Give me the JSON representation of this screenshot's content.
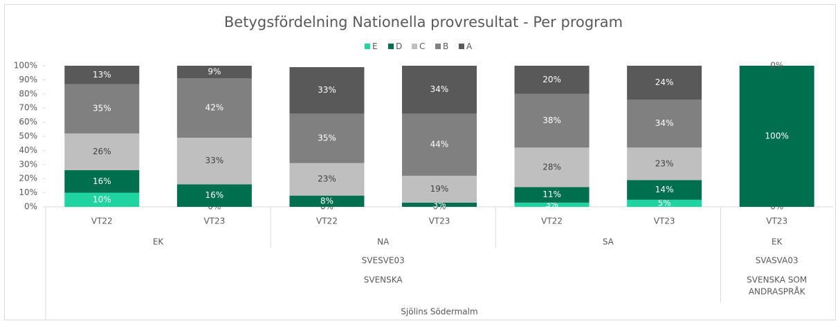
{
  "chart_data": {
    "type": "stacked-bar-100",
    "title": "Betygsfördelning Nationella provresultat - Per program",
    "categories": [
      "VT22",
      "VT23",
      "VT22",
      "VT23",
      "VT22",
      "VT23",
      "VT23"
    ],
    "category_levels": [
      [
        {
          "label": "EK",
          "span": 2
        },
        {
          "label": "NA",
          "span": 2
        },
        {
          "label": "SA",
          "span": 2
        },
        {
          "label": "EK",
          "span": 1
        }
      ],
      [
        {
          "label": "SVESVE03",
          "span": 6
        },
        {
          "label": "SVASVA03",
          "span": 1
        }
      ],
      [
        {
          "label": "SVENSKA",
          "span": 6
        },
        {
          "label": [
            "SVENSKA SOM",
            "ANDRASPRÅK"
          ],
          "span": 1
        }
      ],
      [
        {
          "label": "Sjölins Södermalm",
          "span": 7
        }
      ]
    ],
    "series": [
      {
        "name": "E",
        "color": "#1fd4a0",
        "values": [
          10,
          0,
          0,
          0,
          3,
          5,
          0
        ],
        "value_labels": [
          "10%",
          "0%",
          "0%",
          "0%",
          "3%",
          "5%",
          "0%"
        ]
      },
      {
        "name": "D",
        "color": "#006f4e",
        "values": [
          16,
          16,
          8,
          3,
          11,
          14,
          100
        ],
        "value_labels": [
          "16%",
          "16%",
          "8%",
          "3%",
          "11%",
          "14%",
          "100%"
        ]
      },
      {
        "name": "C",
        "color": "#bfbfbf",
        "values": [
          26,
          33,
          23,
          19,
          28,
          23,
          null
        ],
        "value_labels": [
          "26%",
          "33%",
          "23%",
          "19%",
          "28%",
          "23%",
          null
        ]
      },
      {
        "name": "B",
        "color": "#808080",
        "values": [
          35,
          42,
          35,
          44,
          38,
          34,
          null
        ],
        "value_labels": [
          "35%",
          "42%",
          "35%",
          "44%",
          "38%",
          "34%",
          null
        ]
      },
      {
        "name": "A",
        "color": "#595959",
        "values": [
          13,
          9,
          33,
          34,
          20,
          24,
          0
        ],
        "value_labels": [
          "13%",
          "9%",
          "33%",
          "34%",
          "20%",
          "24%",
          "0%"
        ]
      }
    ],
    "ylim": [
      0,
      100
    ],
    "yticks": [
      {
        "value": 0,
        "label": "0%"
      },
      {
        "value": 10,
        "label": "10%"
      },
      {
        "value": 20,
        "label": "20%"
      },
      {
        "value": 30,
        "label": "30%"
      },
      {
        "value": 40,
        "label": "40%"
      },
      {
        "value": 50,
        "label": "50%"
      },
      {
        "value": 60,
        "label": "60%"
      },
      {
        "value": 70,
        "label": "70%"
      },
      {
        "value": 80,
        "label": "80%"
      },
      {
        "value": 90,
        "label": "90%"
      },
      {
        "value": 100,
        "label": "100%"
      }
    ],
    "grid": false,
    "legend": "top"
  }
}
